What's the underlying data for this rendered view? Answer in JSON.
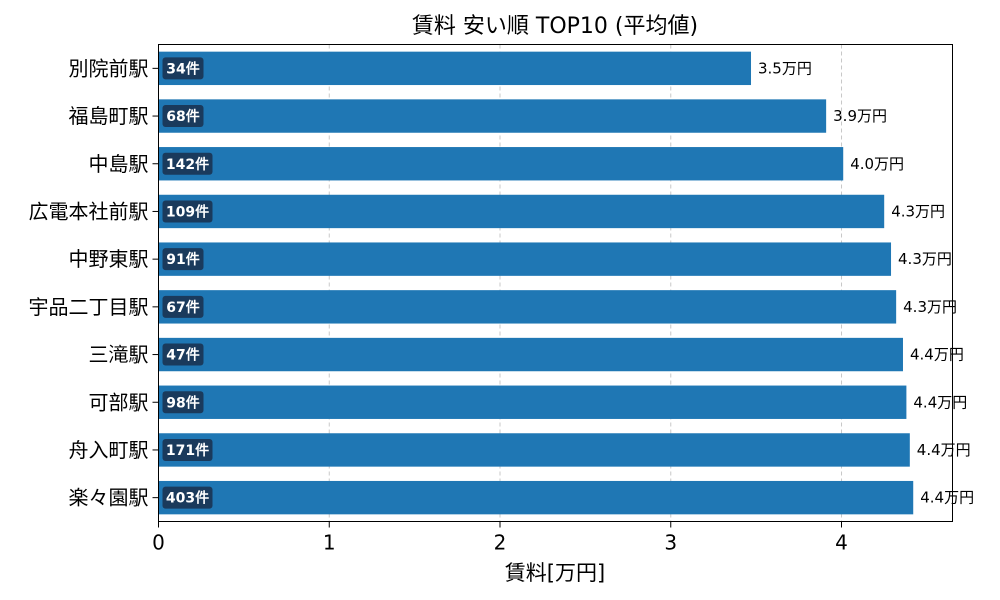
{
  "chart_data": {
    "type": "bar",
    "orientation": "horizontal",
    "title": "賃料 安い順 TOP10 (平均値)",
    "xlabel": "賃料[万円]",
    "ylabel": "",
    "xlim": [
      0,
      4.65
    ],
    "xticks": [
      "0",
      "1",
      "2",
      "3",
      "4"
    ],
    "grid": "x-dashed",
    "bar_color": "#1f77b4",
    "badge_color": "#1a3a5c",
    "categories": [
      "別院前駅",
      "福島町駅",
      "中島駅",
      "広電本社前駅",
      "中野東駅",
      "宇品二丁目駅",
      "三滝駅",
      "可部駅",
      "舟入町駅",
      "楽々園駅"
    ],
    "values": [
      3.47,
      3.91,
      4.01,
      4.25,
      4.29,
      4.32,
      4.36,
      4.38,
      4.4,
      4.42
    ],
    "value_labels": [
      "3.5万円",
      "3.9万円",
      "4.0万円",
      "4.3万円",
      "4.3万円",
      "4.3万円",
      "4.4万円",
      "4.4万円",
      "4.4万円",
      "4.4万円"
    ],
    "counts": [
      "34件",
      "68件",
      "142件",
      "109件",
      "91件",
      "67件",
      "47件",
      "98件",
      "171件",
      "403件"
    ]
  }
}
